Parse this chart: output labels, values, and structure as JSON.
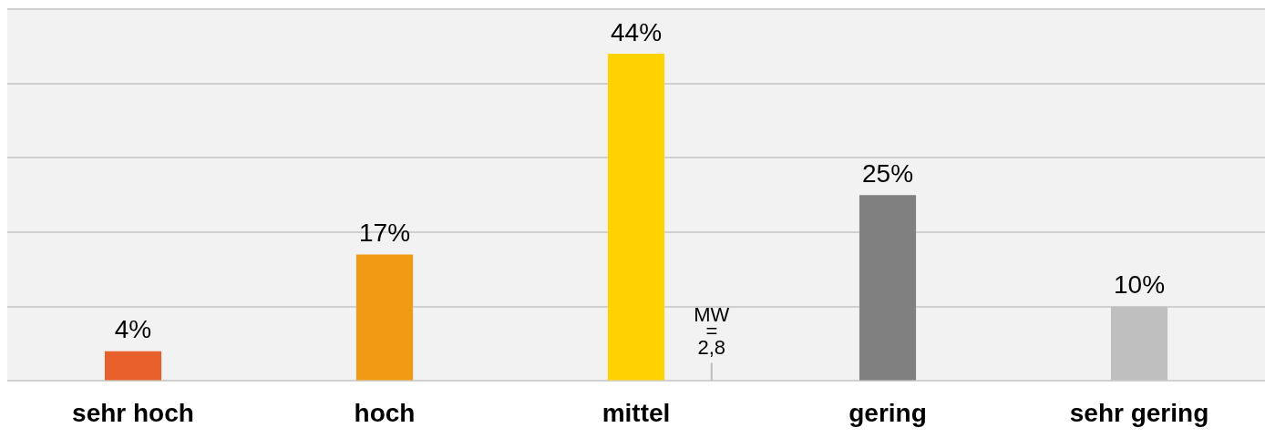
{
  "chart_data": {
    "type": "bar",
    "categories": [
      "sehr hoch",
      "hoch",
      "mittel",
      "gering",
      "sehr gering"
    ],
    "values": [
      4,
      17,
      44,
      25,
      10
    ],
    "value_labels": [
      "4%",
      "17%",
      "44%",
      "25%",
      "10%"
    ],
    "colors": [
      "#e8602c",
      "#f39a14",
      "#ffd200",
      "#808080",
      "#bfbfbf"
    ],
    "tick_labels": "x",
    "grid": "y",
    "legend": false,
    "annotations": [
      "MW\n=\n2,8"
    ]
  }
}
